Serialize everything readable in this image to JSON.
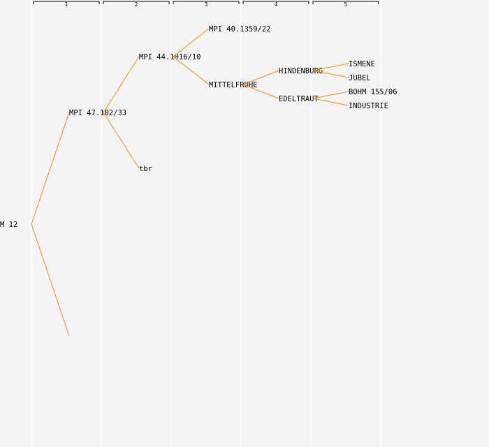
{
  "generations": [
    "1",
    "2",
    "3",
    "4",
    "5"
  ],
  "line_color": "#ff8c00",
  "tree": {
    "name": "M 12",
    "parents": [
      {
        "name": "MPI 47.102/33",
        "parents": [
          {
            "name": "MPI 44.1016/10",
            "parents": [
              {
                "name": "MPI 40.1359/22",
                "parents": []
              },
              {
                "name": "MITTELFRUHE",
                "parents": [
                  {
                    "name": "HINDENBURG",
                    "parents": [
                      {
                        "name": "ISMENE",
                        "parents": []
                      },
                      {
                        "name": "JUBEL",
                        "parents": []
                      }
                    ]
                  },
                  {
                    "name": "EDELTRAUT",
                    "parents": [
                      {
                        "name": "BOHM 155/06",
                        "parents": []
                      },
                      {
                        "name": "INDUSTRIE",
                        "parents": []
                      }
                    ]
                  }
                ]
              }
            ]
          },
          {
            "name": "tbr",
            "parents": []
          }
        ]
      },
      {
        "name": "",
        "parents": []
      }
    ]
  }
}
